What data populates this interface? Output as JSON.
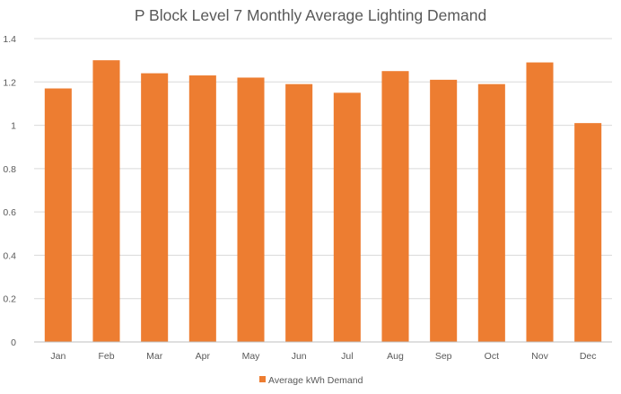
{
  "chart_data": {
    "type": "bar",
    "title": "P Block Level 7 Monthly Average Lighting Demand",
    "categories": [
      "Jan",
      "Feb",
      "Mar",
      "Apr",
      "May",
      "Jun",
      "Jul",
      "Aug",
      "Sep",
      "Oct",
      "Nov",
      "Dec"
    ],
    "series": [
      {
        "name": "Average kWh Demand",
        "values": [
          1.17,
          1.3,
          1.24,
          1.23,
          1.22,
          1.19,
          1.15,
          1.25,
          1.21,
          1.19,
          1.29,
          1.01
        ],
        "color": "#ED7D31"
      }
    ],
    "yticks": [
      "0",
      "0.2",
      "0.4",
      "0.6",
      "0.8",
      "1",
      "1.2",
      "1.4"
    ],
    "ylim": [
      0,
      1.4
    ],
    "xlabel": "",
    "ylabel": "",
    "grid": true,
    "legend_position": "bottom"
  }
}
